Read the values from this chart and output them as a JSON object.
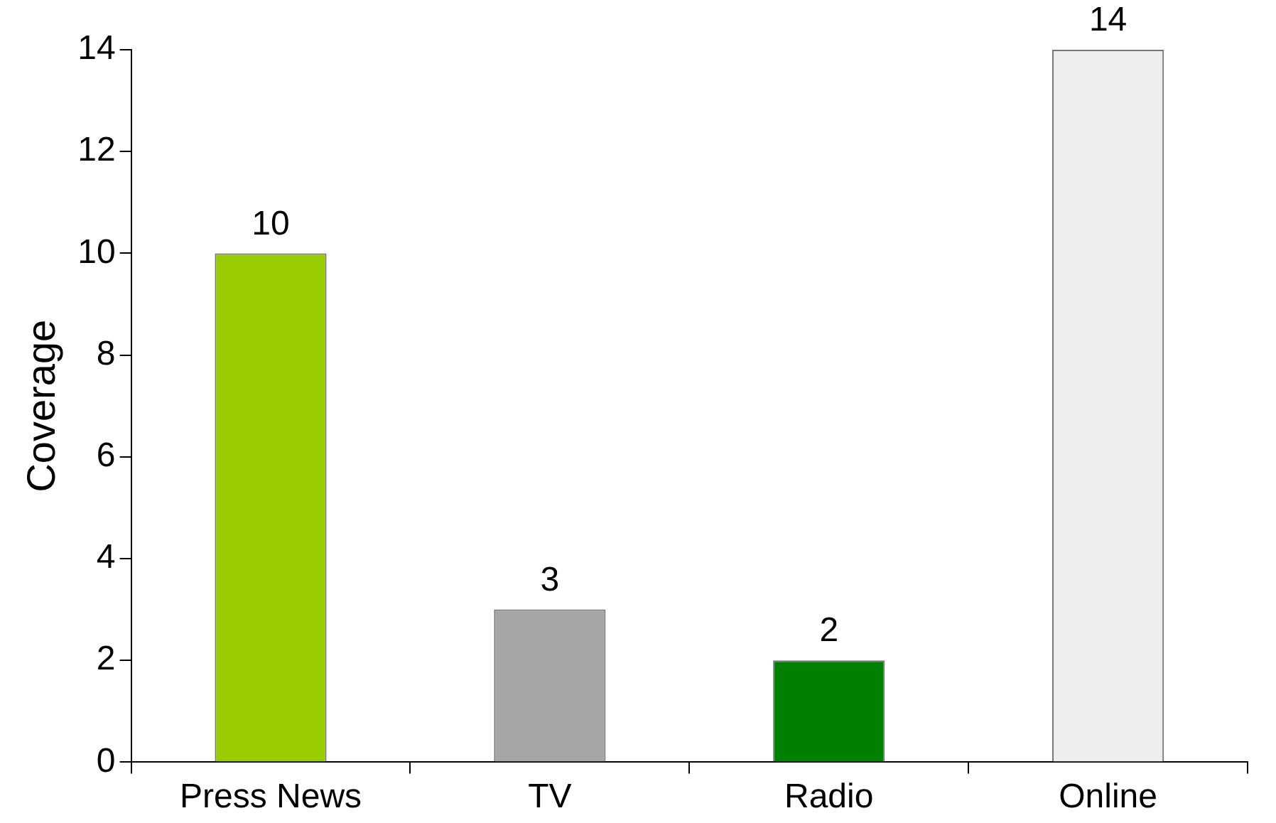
{
  "chart_data": {
    "type": "bar",
    "ylabel": "Coverage",
    "categories": [
      "Press News",
      "TV",
      "Radio",
      "Online"
    ],
    "values": [
      10,
      3,
      2,
      14
    ],
    "colors": [
      "#99cc00",
      "#a6a6a6",
      "#008000",
      "#eeeeee"
    ],
    "ylim": [
      0,
      14
    ],
    "yticks": [
      0,
      2,
      4,
      6,
      8,
      10,
      12,
      14
    ],
    "data_labels": true,
    "grid": false,
    "legend": false
  }
}
